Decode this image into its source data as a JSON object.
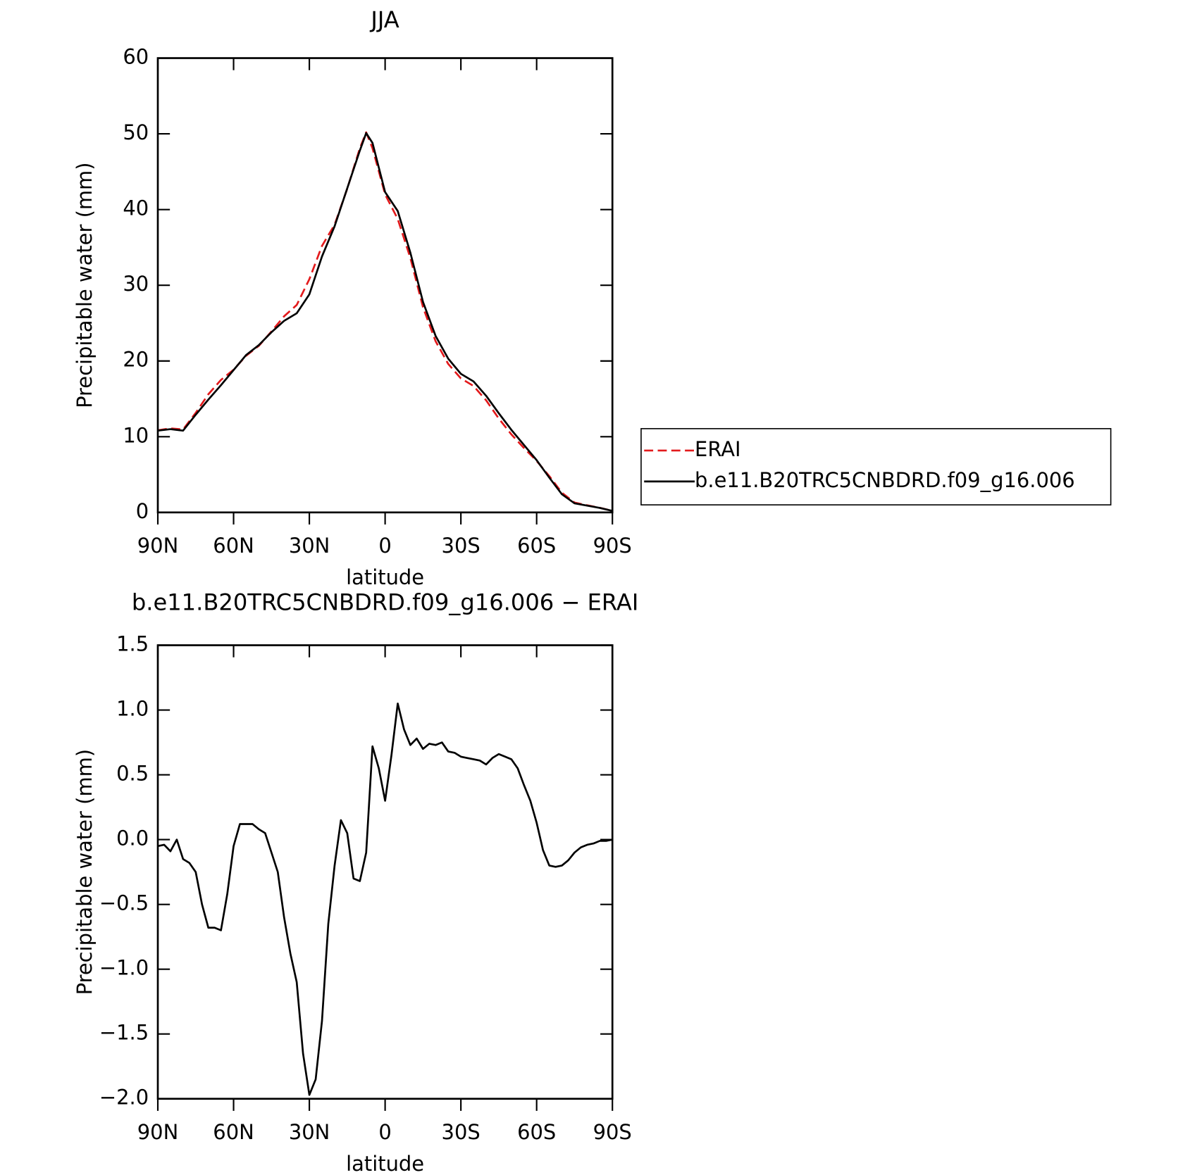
{
  "chart_data": [
    {
      "type": "line",
      "title": "JJA",
      "xlabel": "latitude",
      "ylabel": "Precipitable water (mm)",
      "x": [
        90,
        85,
        80,
        75,
        70,
        65,
        60,
        55,
        50,
        45,
        40,
        35,
        30,
        25,
        20,
        15,
        10,
        7.5,
        5,
        0,
        -5,
        -10,
        -15,
        -20,
        -25,
        -30,
        -35,
        -40,
        -45,
        -50,
        -55,
        -60,
        -65,
        -70,
        -75,
        -80,
        -85,
        -90
      ],
      "xlim": [
        90,
        -90
      ],
      "xticks": [
        {
          "value": 90,
          "label": "90N"
        },
        {
          "value": 60,
          "label": "60N"
        },
        {
          "value": 30,
          "label": "30N"
        },
        0,
        {
          "value": -30,
          "label": "30S"
        },
        {
          "value": -60,
          "label": "60S"
        },
        {
          "value": -90,
          "label": "90S"
        }
      ],
      "ylim": [
        0,
        60
      ],
      "yticks": [
        0,
        10,
        20,
        30,
        40,
        50,
        60
      ],
      "legend": "outside-right",
      "series": [
        {
          "name": "ERAI",
          "color": "#e31a1c",
          "dash": "dashed",
          "values": [
            10.85,
            11.1,
            10.95,
            13.15,
            15.6,
            17.5,
            18.85,
            20.7,
            22.0,
            23.9,
            25.9,
            27.4,
            30.8,
            35.2,
            38.0,
            42.75,
            48.1,
            50.2,
            48.1,
            42.0,
            38.75,
            33.6,
            27.1,
            22.6,
            19.6,
            17.7,
            16.7,
            14.8,
            12.4,
            10.3,
            8.5,
            6.8,
            4.8,
            2.6,
            1.3,
            0.94,
            0.61,
            0.2
          ]
        },
        {
          "name": "b.e11.B20TRC5CNBDRD.f09_g16.006",
          "color": "#000000",
          "dash": "solid",
          "values": [
            10.8,
            11.0,
            10.8,
            12.9,
            14.9,
            16.8,
            18.8,
            20.8,
            22.1,
            23.8,
            25.3,
            26.3,
            28.8,
            33.8,
            37.8,
            42.8,
            47.8,
            50.1,
            48.8,
            42.3,
            39.8,
            34.3,
            27.8,
            23.3,
            20.3,
            18.3,
            17.3,
            15.4,
            13.1,
            10.9,
            8.9,
            6.9,
            4.6,
            2.4,
            1.2,
            0.9,
            0.6,
            0.2
          ]
        }
      ]
    },
    {
      "type": "line",
      "title": "b.e11.B20TRC5CNBDRD.f09_g16.006 − ERAI",
      "xlabel": "latitude",
      "ylabel": "Precipitable water (mm)",
      "x": [
        90,
        87.5,
        85,
        82.5,
        80,
        77.5,
        75,
        72.5,
        70,
        67.5,
        65,
        62.5,
        60,
        57.5,
        55,
        52.5,
        50,
        47.5,
        45,
        42.5,
        40,
        37.5,
        35,
        32.5,
        30,
        27.5,
        25,
        22.5,
        20,
        17.5,
        15,
        12.5,
        10,
        7.5,
        5,
        2.5,
        0,
        -2.5,
        -5,
        -7.5,
        -10,
        -12.5,
        -15,
        -17.5,
        -20,
        -22.5,
        -25,
        -27.5,
        -30,
        -32.5,
        -35,
        -37.5,
        -40,
        -42.5,
        -45,
        -47.5,
        -50,
        -52.5,
        -55,
        -57.5,
        -60,
        -62.5,
        -65,
        -67.5,
        -70,
        -72.5,
        -75,
        -77.5,
        -80,
        -82.5,
        -85,
        -87.5,
        -90
      ],
      "xlim": [
        90,
        -90
      ],
      "xticks": [
        {
          "value": 90,
          "label": "90N"
        },
        {
          "value": 60,
          "label": "60N"
        },
        {
          "value": 30,
          "label": "30N"
        },
        0,
        {
          "value": -30,
          "label": "30S"
        },
        {
          "value": -60,
          "label": "60S"
        },
        {
          "value": -90,
          "label": "90S"
        }
      ],
      "ylim": [
        -2.0,
        1.5
      ],
      "yticks": [
        {
          "value": -2,
          "label": "−2.0"
        },
        {
          "value": -1.5,
          "label": "−1.5"
        },
        {
          "value": -1,
          "label": "−1.0"
        },
        {
          "value": -0.5,
          "label": "−0.5"
        },
        {
          "value": 0,
          "label": "0.0"
        },
        0.5,
        {
          "value": 1,
          "label": "1.0"
        },
        1.5
      ],
      "series": [
        {
          "color": "#000000",
          "dash": "solid",
          "values": [
            -0.05,
            -0.04,
            -0.09,
            0.0,
            -0.15,
            -0.18,
            -0.25,
            -0.5,
            -0.68,
            -0.68,
            -0.7,
            -0.42,
            -0.05,
            0.12,
            0.12,
            0.12,
            0.08,
            0.05,
            -0.1,
            -0.25,
            -0.6,
            -0.88,
            -1.1,
            -1.65,
            -1.97,
            -1.85,
            -1.4,
            -0.65,
            -0.2,
            0.15,
            0.05,
            -0.3,
            -0.32,
            -0.1,
            0.72,
            0.55,
            0.3,
            0.65,
            1.05,
            0.85,
            0.73,
            0.78,
            0.7,
            0.74,
            0.73,
            0.75,
            0.68,
            0.67,
            0.64,
            0.63,
            0.62,
            0.61,
            0.58,
            0.63,
            0.66,
            0.64,
            0.62,
            0.55,
            0.42,
            0.3,
            0.13,
            -0.08,
            -0.2,
            -0.21,
            -0.2,
            -0.16,
            -0.1,
            -0.06,
            -0.04,
            -0.03,
            -0.01,
            -0.01,
            0.0
          ]
        }
      ]
    }
  ]
}
